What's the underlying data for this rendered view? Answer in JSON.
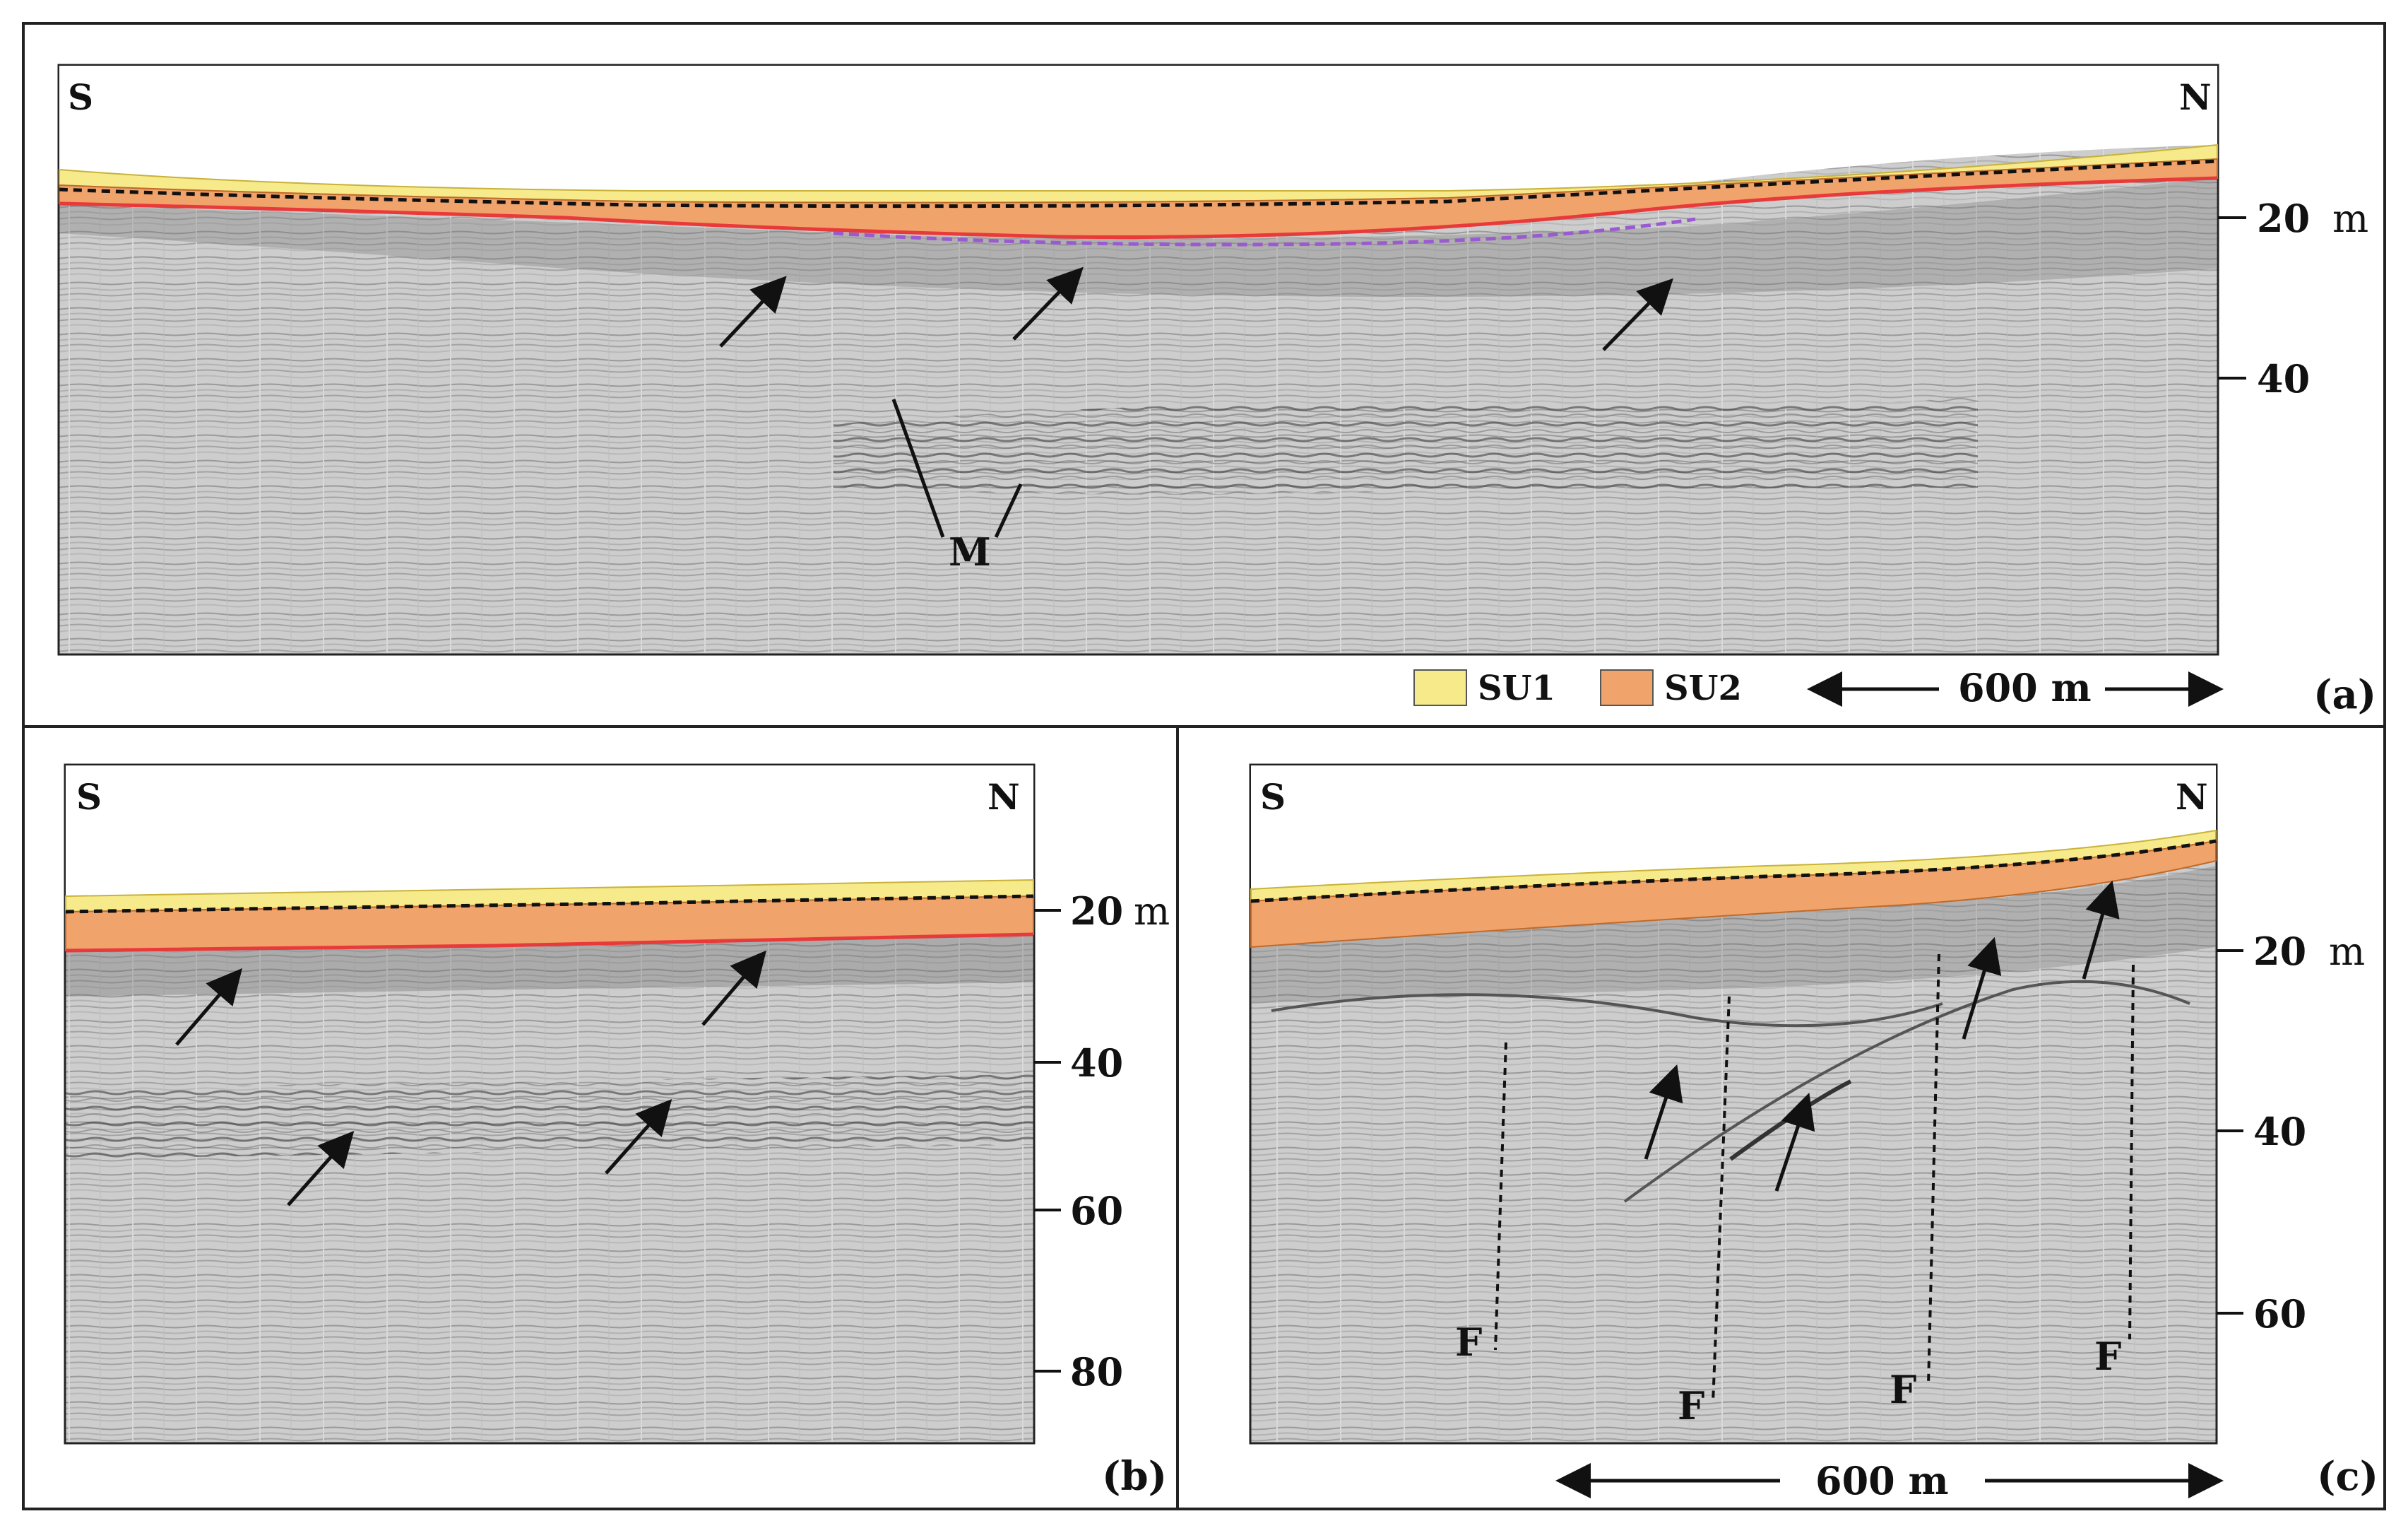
{
  "figure": {
    "colors": {
      "su1": "#f6ea8a",
      "su1_border": "#c8b23a",
      "su2": "#f0a36a",
      "su2_border": "#c06a2a",
      "base_line": "#e83a3a",
      "purple_line": "#9a5ad0",
      "seismic_bg": "#c9c9c9",
      "ink": "#111111"
    },
    "legend": {
      "su1": "SU1",
      "su2": "SU2"
    },
    "panel_a": {
      "tag": "(a)",
      "dir_left": "S",
      "dir_right": "N",
      "depth_20": "20",
      "depth_unit": "m",
      "depth_40": "40",
      "marker": "M",
      "scale": "600 m"
    },
    "panel_b": {
      "tag": "(b)",
      "dir_left": "S",
      "dir_right": "N",
      "depth_20": "20",
      "depth_unit": "m",
      "depth_40": "40",
      "depth_60": "60",
      "depth_80": "80"
    },
    "panel_c": {
      "tag": "(c)",
      "dir_left": "S",
      "dir_right": "N",
      "depth_20": "20",
      "depth_unit": "m",
      "depth_40": "40",
      "depth_60": "60",
      "fault": "F",
      "scale": "600 m"
    }
  }
}
